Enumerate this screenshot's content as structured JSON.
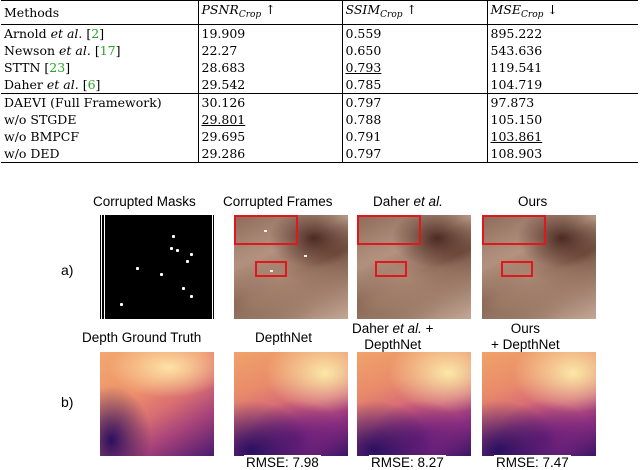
{
  "table": {
    "headers": {
      "methods": "Methods",
      "psnr": {
        "base": "PSNR",
        "sub": "Crop",
        "arrow": "↑"
      },
      "ssim": {
        "base": "SSIM",
        "sub": "Crop",
        "arrow": "↑"
      },
      "mse": {
        "base": "MSE",
        "sub": "Crop",
        "arrow": "↓"
      }
    },
    "baseline_rows": [
      {
        "name": "Arnold",
        "etal": "et al.",
        "cite": "2",
        "psnr": "19.909",
        "ssim": "0.559",
        "mse": "895.222"
      },
      {
        "name": "Newson",
        "etal": "et al.",
        "cite": "17",
        "psnr": "22.27",
        "ssim": "0.650",
        "mse": "543.636"
      },
      {
        "name": "STTN",
        "etal": "",
        "cite": "23",
        "psnr": "28.683",
        "ssim": "0.793",
        "mse": "119.541"
      },
      {
        "name": "Daher",
        "etal": "et al.",
        "cite": "6",
        "psnr": "29.542",
        "ssim": "0.785",
        "mse": "104.719"
      }
    ],
    "ablation_rows": [
      {
        "name": "DAEVI (Full Framework)",
        "psnr": "30.126",
        "ssim": "0.797",
        "mse": "97.873"
      },
      {
        "name": "w/o STGDE",
        "psnr": "29.801",
        "ssim": "0.788",
        "mse": "105.150"
      },
      {
        "name": "w/o BMPCF",
        "psnr": "29.695",
        "ssim": "0.791",
        "mse": "103.861"
      },
      {
        "name": "w/o DED",
        "psnr": "29.286",
        "ssim": "0.797",
        "mse": "108.903"
      }
    ]
  },
  "figure": {
    "row_a_label": "a)",
    "row_b_label": "b)",
    "col_labels_a": {
      "masks": "Corrupted Masks",
      "frames": "Corrupted Frames",
      "daher_name": "Daher",
      "daher_etal": "et al.",
      "ours": "Ours"
    },
    "col_labels_b": {
      "gt": "Depth Ground Truth",
      "depthnet": "DepthNet",
      "daher_line1_name": "Daher",
      "daher_line1_etal": "et al.",
      "daher_line1_suffix": "+",
      "daher_line2": "DepthNet",
      "ours_line1": "Ours",
      "ours_line2": "+ DepthNet"
    },
    "rmse": {
      "depthnet": "RMSE: 7.98",
      "daher": "RMSE: 8.27",
      "ours": "RMSE: 7.47"
    },
    "colors": {
      "highlight_box": "#e0171d",
      "citation": "#2aa52a"
    }
  }
}
